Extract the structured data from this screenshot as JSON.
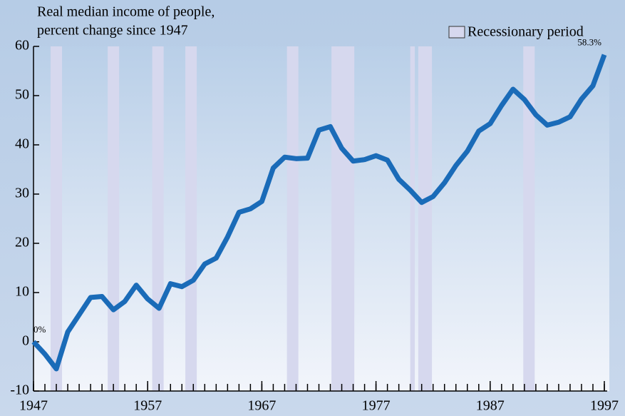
{
  "chart_data": {
    "type": "line",
    "title": [
      "Real median income of people,",
      "percent change since 1947"
    ],
    "legend": "Recessionary period",
    "legend_position": "top-right",
    "recession_color": "#d6d8ee",
    "recessions": [
      [
        1948.5,
        1949.5
      ],
      [
        1953.5,
        1954.5
      ],
      [
        1957.4,
        1958.4
      ],
      [
        1960.3,
        1961.3
      ],
      [
        1969.2,
        1970.2
      ],
      [
        1973.1,
        1975.1
      ],
      [
        1980.0,
        1980.4
      ],
      [
        1980.7,
        1981.9
      ],
      [
        1989.9,
        1990.9
      ]
    ],
    "x": [
      1947,
      1948,
      1949,
      1950,
      1951,
      1952,
      1953,
      1954,
      1955,
      1956,
      1957,
      1958,
      1959,
      1960,
      1961,
      1962,
      1963,
      1964,
      1965,
      1966,
      1967,
      1968,
      1969,
      1970,
      1971,
      1972,
      1973,
      1974,
      1975,
      1976,
      1977,
      1978,
      1979,
      1980,
      1981,
      1982,
      1983,
      1984,
      1985,
      1986,
      1987,
      1988,
      1989,
      1990,
      1991,
      1992,
      1993,
      1994,
      1995,
      1996,
      1997
    ],
    "series": [
      {
        "color": "#1a6bb8",
        "values": [
          0,
          -2.5,
          -5.5,
          2,
          5.5,
          9,
          9.2,
          6.5,
          8.2,
          11.5,
          8.7,
          6.8,
          11.8,
          11.2,
          12.5,
          15.8,
          17,
          21.3,
          26.3,
          27,
          28.5,
          35.3,
          37.5,
          37.2,
          37.3,
          43,
          43.7,
          39.3,
          36.7,
          37,
          37.8,
          36.9,
          33,
          30.8,
          28.3,
          29.5,
          32.3,
          35.8,
          38.7,
          42.8,
          44.3,
          48,
          51.3,
          49.2,
          46.1,
          44,
          44.6,
          45.7,
          49.3,
          52,
          58.3
        ],
        "value_labels": [
          "0%",
          null,
          null,
          null,
          null,
          null,
          null,
          null,
          null,
          null,
          null,
          null,
          null,
          null,
          null,
          null,
          null,
          null,
          null,
          null,
          null,
          null,
          null,
          null,
          null,
          null,
          null,
          null,
          null,
          null,
          null,
          null,
          null,
          null,
          null,
          null,
          null,
          null,
          null,
          null,
          null,
          null,
          null,
          null,
          null,
          null,
          null,
          null,
          null,
          null,
          "58.3%"
        ]
      }
    ],
    "xlim": [
      1947,
      1997
    ],
    "xticks": [
      1947,
      1957,
      1967,
      1977,
      1987,
      1997
    ],
    "ylim": [
      -10,
      60
    ],
    "yticks": [
      -10,
      0,
      10,
      20,
      30,
      40,
      50,
      60
    ]
  }
}
